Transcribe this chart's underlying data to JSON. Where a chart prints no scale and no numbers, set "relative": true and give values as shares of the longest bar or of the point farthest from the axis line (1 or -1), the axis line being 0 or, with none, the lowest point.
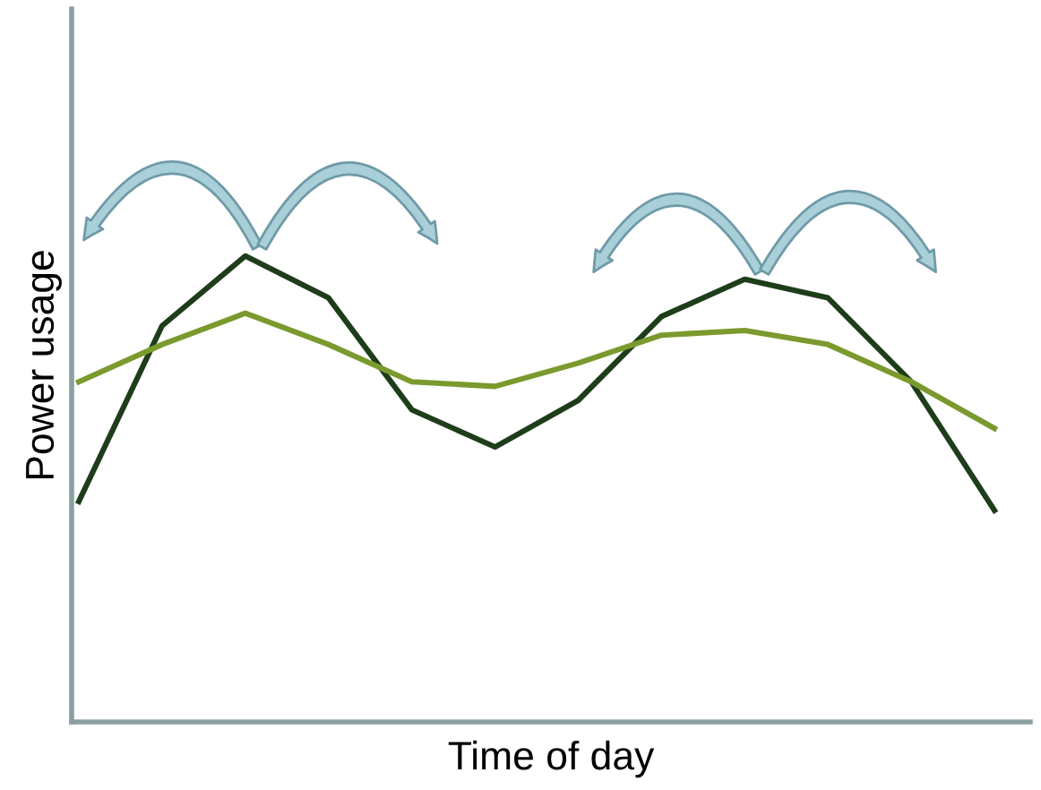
{
  "chart_data": {
    "type": "line",
    "relative": true,
    "xlabel": "Time of day",
    "ylabel": "Power usage",
    "categories": [
      null,
      null,
      null,
      null,
      null,
      null,
      null,
      null,
      null,
      null,
      null,
      null
    ],
    "series": [
      {
        "color": "#1e3d1a",
        "values": [
          0.473,
          0.85,
          1,
          0.91,
          0.67,
          0.59,
          0.69,
          0.87,
          0.95,
          0.91,
          0.73,
          0.454
        ]
      },
      {
        "color": "#7a9a2e",
        "values": [
          0.73,
          0.81,
          0.877,
          0.81,
          0.73,
          0.72,
          0.77,
          0.83,
          0.84,
          0.81,
          0.73,
          0.63
        ]
      }
    ],
    "grid": false,
    "legend": false,
    "marker": "none",
    "line_style": "solid"
  }
}
